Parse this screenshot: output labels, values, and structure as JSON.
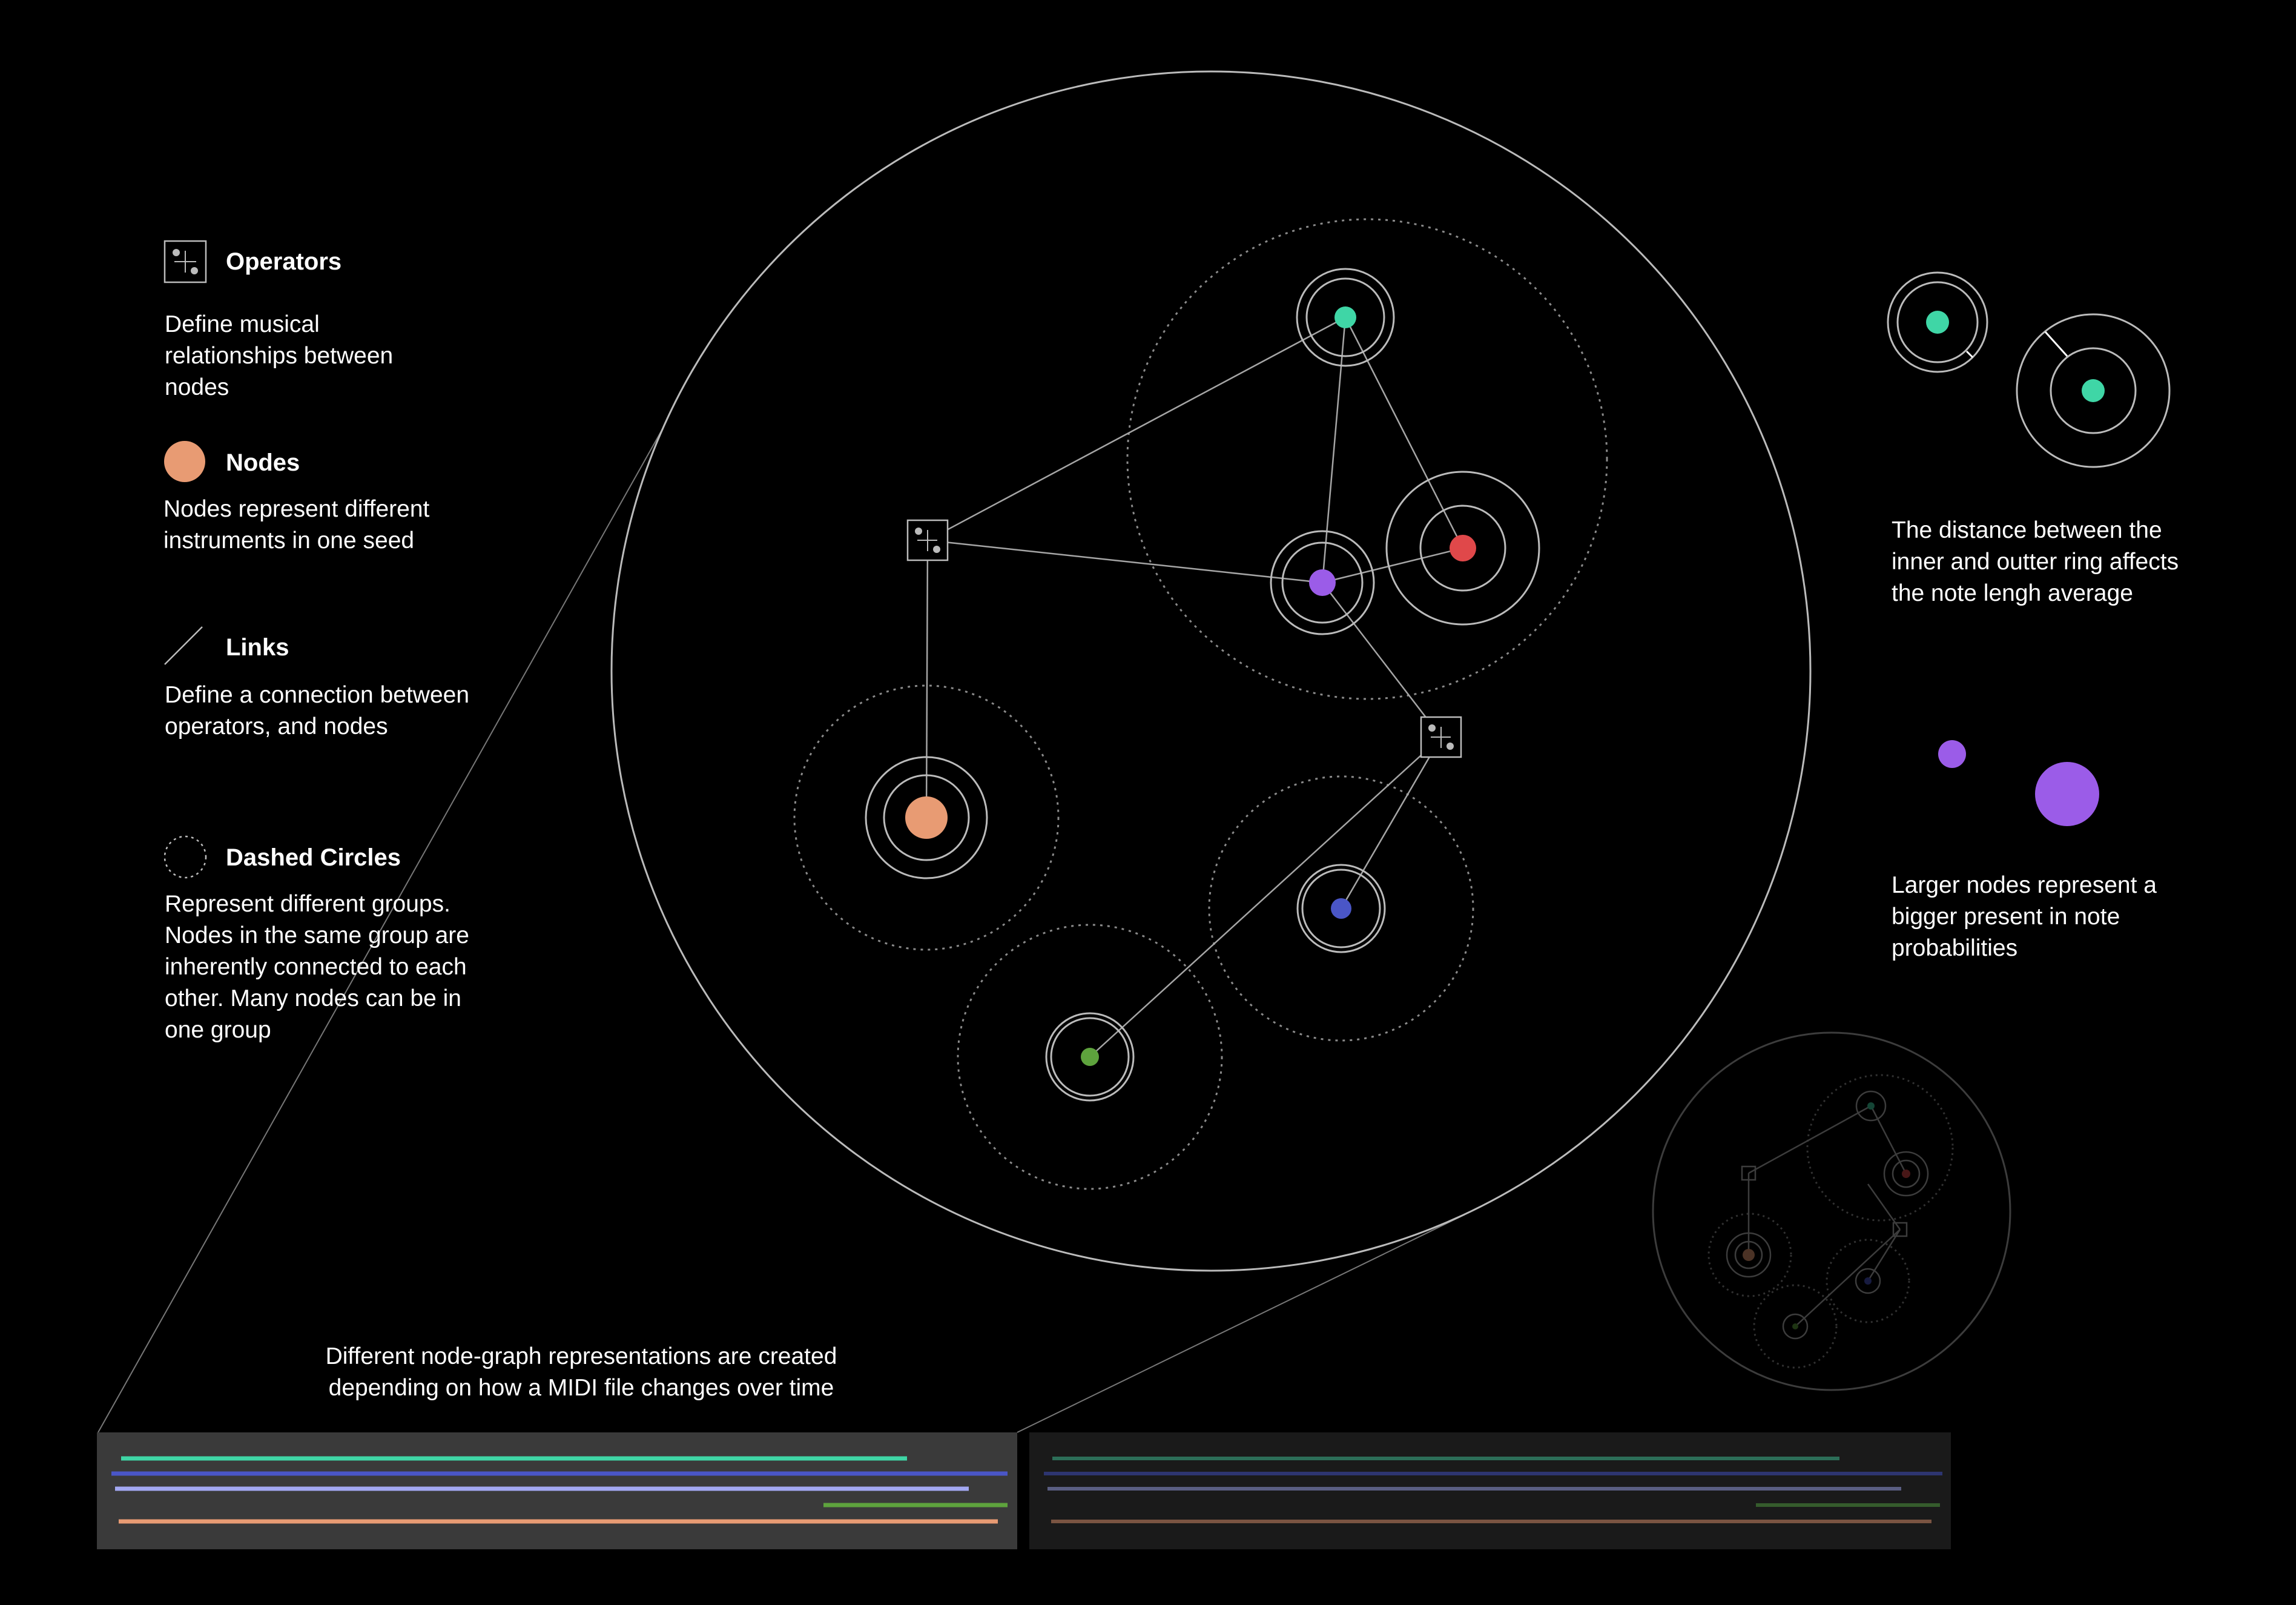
{
  "legend": {
    "operators": {
      "title": "Operators",
      "desc": "Define musical relationships between nodes"
    },
    "nodes": {
      "title": "Nodes",
      "desc": "Nodes represent different instruments in one seed"
    },
    "links": {
      "title": "Links",
      "desc": "Define a connection between operators, and nodes"
    },
    "dashed_circles": {
      "title": "Dashed Circles",
      "desc": "Represent different groups. Nodes in the same group are inherently connected to each other. Many nodes can be in one group"
    }
  },
  "notes": {
    "ring_distance": "The distance between the inner and outter ring affects the note lengh average",
    "node_size": "Larger nodes represent a bigger present in note probabilities"
  },
  "caption": "Different node-graph representations are created depending on how a MIDI file changes over time",
  "colors": {
    "teal": "#3fd6a6",
    "red": "#e0484a",
    "purple": "#9b5ce8",
    "orange": "#e89b73",
    "blue": "#4a56c7",
    "green": "#5ea33d",
    "line": "#9a9a9a",
    "panel_light": "#3a3a3a",
    "panel_dark": "#1a1a1a"
  },
  "icons": [
    "operator-icon",
    "node-icon",
    "link-icon",
    "dashed-circle-icon"
  ]
}
